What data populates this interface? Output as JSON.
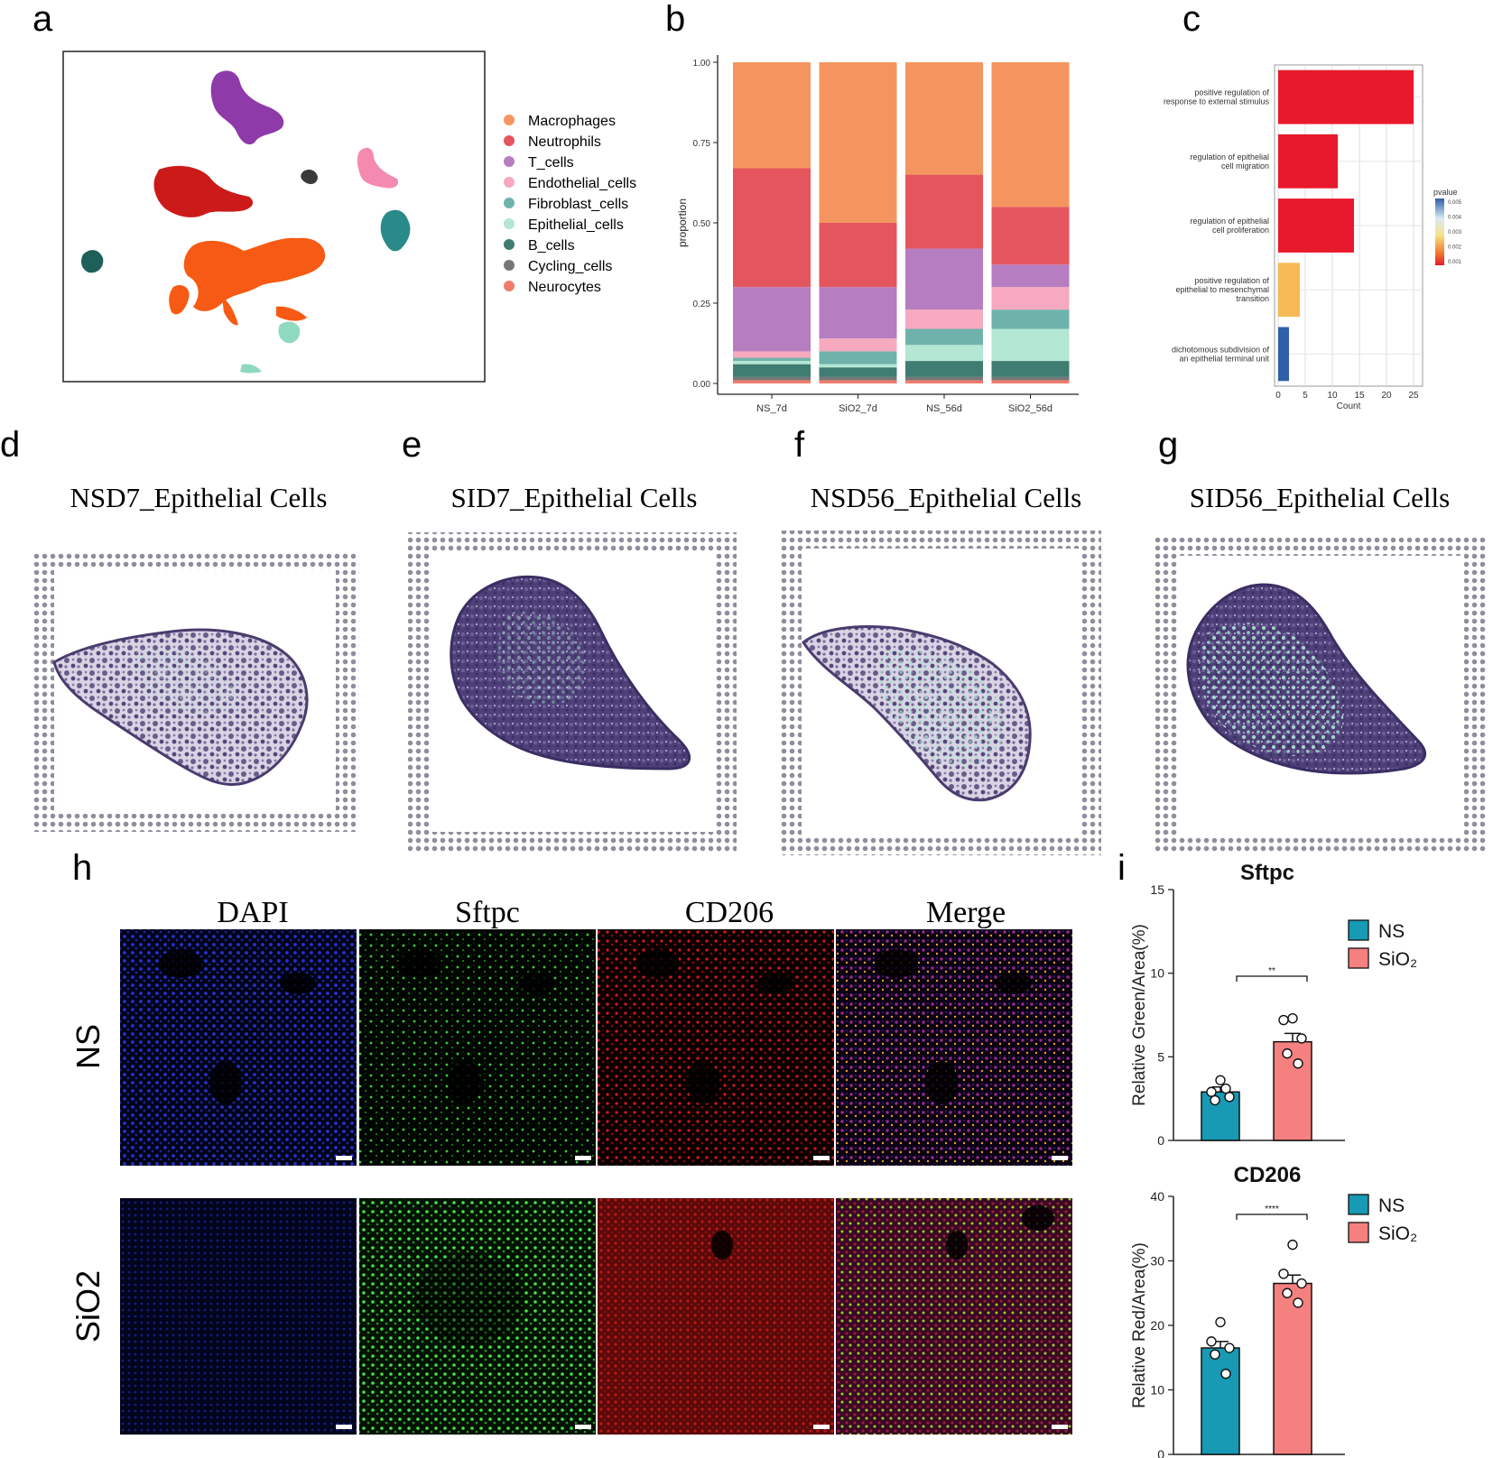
{
  "figure": {
    "panel_letters": {
      "a": "a",
      "b": "b",
      "c": "c",
      "d": "d",
      "e": "e",
      "f": "f",
      "g": "g",
      "h": "h",
      "i": "i"
    }
  },
  "colors": {
    "Macrophages": "#f4955f",
    "Neutrophils": "#e5555e",
    "T_cells": "#b67ec0",
    "Endothelial_cells": "#f7a9bf",
    "Fibroblast_cells": "#6fb2ac",
    "Epithelial_cells": "#b3e6d3",
    "B_cells": "#3f7c72",
    "Cycling_cells": "#767676",
    "Neurocytes": "#f07b6c",
    "NS": "#1899b4",
    "SiO2": "#f58080",
    "tissue": "#5a4a7a",
    "spot": "#8a8a9a"
  },
  "legend_a": {
    "entries": [
      {
        "label": "Macrophages",
        "color": "#f4955f"
      },
      {
        "label": "Neutrophils",
        "color": "#e5555e"
      },
      {
        "label": "T_cells",
        "color": "#b67ec0"
      },
      {
        "label": "Endothelial_cells",
        "color": "#f7a9bf"
      },
      {
        "label": "Fibroblast_cells",
        "color": "#6fb2ac"
      },
      {
        "label": "Epithelial_cells",
        "color": "#b3e6d3"
      },
      {
        "label": "B_cells",
        "color": "#3f7c72"
      },
      {
        "label": "Cycling_cells",
        "color": "#767676"
      },
      {
        "label": "Neurocytes",
        "color": "#f07b6c"
      }
    ]
  },
  "spatial": {
    "titles": [
      "NSD7_Epithelial Cells",
      "SID7_Epithelial Cells",
      "NSD56_Epithelial Cells",
      "SID56_Epithelial Cells"
    ]
  },
  "if_panel": {
    "columns": [
      "DAPI",
      "Sftpc",
      "CD206",
      "Merge"
    ],
    "rows": [
      "NS",
      "SiO2"
    ]
  },
  "chart_data": [
    {
      "id": "b",
      "type": "bar",
      "stacked": true,
      "title": "",
      "ylabel": "proportion",
      "xlabel": "",
      "ylim": [
        0,
        1
      ],
      "yticks": [
        "0.00",
        "0.25",
        "0.50",
        "0.75",
        "1.00"
      ],
      "categories": [
        "NS_7d",
        "SiO2_7d",
        "NS_56d",
        "SiO2_56d"
      ],
      "series": [
        {
          "name": "Neurocytes",
          "values": [
            0.01,
            0.01,
            0.01,
            0.01
          ]
        },
        {
          "name": "Cycling_cells",
          "values": [
            0.01,
            0.01,
            0.01,
            0.01
          ]
        },
        {
          "name": "B_cells",
          "values": [
            0.04,
            0.03,
            0.05,
            0.05
          ]
        },
        {
          "name": "Epithelial_cells",
          "values": [
            0.01,
            0.01,
            0.05,
            0.1
          ]
        },
        {
          "name": "Fibroblast_cells",
          "values": [
            0.01,
            0.04,
            0.05,
            0.06
          ]
        },
        {
          "name": "Endothelial_cells",
          "values": [
            0.02,
            0.04,
            0.06,
            0.07
          ]
        },
        {
          "name": "T_cells",
          "values": [
            0.2,
            0.16,
            0.19,
            0.07
          ]
        },
        {
          "name": "Neutrophils",
          "values": [
            0.37,
            0.2,
            0.23,
            0.18
          ]
        },
        {
          "name": "Macrophages",
          "values": [
            0.33,
            0.5,
            0.35,
            0.45
          ]
        }
      ]
    },
    {
      "id": "c",
      "type": "bar",
      "orientation": "horizontal",
      "xlabel": "Count",
      "ylabel": "",
      "xlim": [
        0,
        26
      ],
      "xticks": [
        "0",
        "5",
        "10",
        "15",
        "20",
        "25"
      ],
      "legend_title": "pvalue",
      "legend_ticks": [
        "0.005",
        "0.004",
        "0.003",
        "0.002",
        "0.001"
      ],
      "categories": [
        [
          "positive regulation of",
          "response to external stimulus"
        ],
        [
          "regulation of epithelial",
          "cell migration"
        ],
        [
          "regulation of epithelial",
          "cell proliferation"
        ],
        [
          "positive regulation of",
          "epithelial to mesenchymal",
          "transition"
        ],
        [
          "dichotomous subdivision of",
          "an epithelial terminal unit"
        ]
      ],
      "values": [
        25,
        11,
        14,
        4,
        2
      ],
      "bar_colors": [
        "#e8192c",
        "#e8192c",
        "#e8192c",
        "#f7b955",
        "#2e5fa8"
      ]
    },
    {
      "id": "i1",
      "type": "bar",
      "title": "Sftpc",
      "ylabel": "Relative Green/Area(%)",
      "ylim": [
        0,
        15
      ],
      "yticks": [
        "0",
        "5",
        "10",
        "15"
      ],
      "categories": [
        "NS",
        "SiO₂"
      ],
      "values": [
        2.9,
        5.9
      ],
      "errors": [
        0.3,
        0.5
      ],
      "points": [
        [
          3.6,
          2.9,
          2.6,
          2.4,
          3.1
        ],
        [
          7.3,
          7.2,
          6.1,
          5.2,
          4.6
        ]
      ],
      "significance": "**",
      "legend": [
        "NS",
        "SiO₂"
      ]
    },
    {
      "id": "i2",
      "type": "bar",
      "title": "CD206",
      "ylabel": "Relative Red/Area(%)",
      "ylim": [
        0,
        40
      ],
      "yticks": [
        "0",
        "10",
        "20",
        "30",
        "40"
      ],
      "categories": [
        "NS",
        "SiO₂"
      ],
      "values": [
        16.5,
        26.5
      ],
      "errors": [
        1.0,
        1.3
      ],
      "points": [
        [
          20.5,
          17.5,
          16.5,
          15.5,
          12.5
        ],
        [
          32.5,
          28,
          26.5,
          25,
          23.5
        ]
      ],
      "significance": "****",
      "legend": [
        "NS",
        "SiO₂"
      ]
    }
  ]
}
